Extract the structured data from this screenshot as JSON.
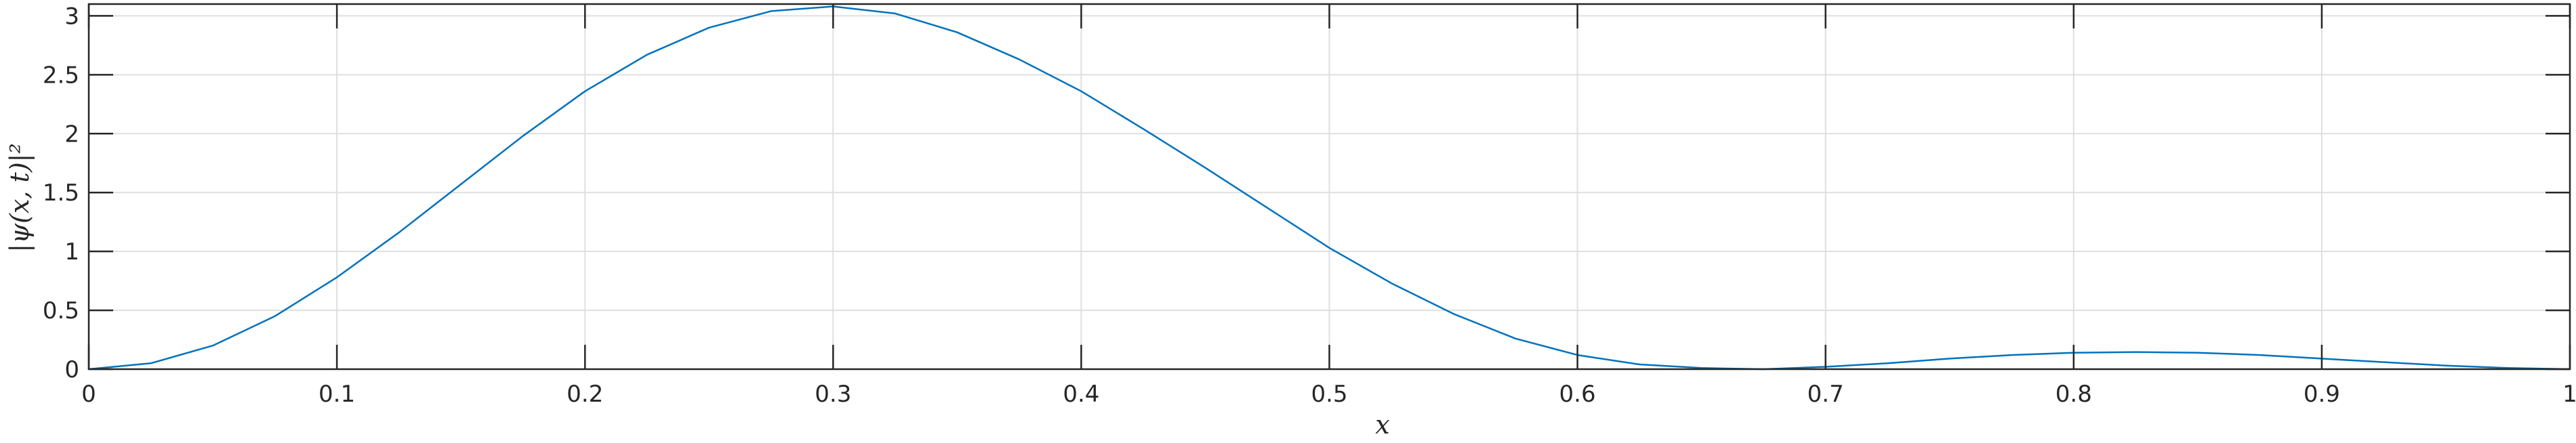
{
  "chart_data": {
    "type": "line",
    "xlabel": "x",
    "ylabel": "|ψ(x, t)|²",
    "xlim": [
      0,
      1
    ],
    "ylim": [
      0,
      3.1
    ],
    "x_ticks": [
      0,
      0.1,
      0.2,
      0.3,
      0.4,
      0.5,
      0.6,
      0.7,
      0.8,
      0.9,
      1
    ],
    "x_tick_labels": [
      "0",
      "0.1",
      "0.2",
      "0.3",
      "0.4",
      "0.5",
      "0.6",
      "0.7",
      "0.8",
      "0.9",
      "1"
    ],
    "y_ticks": [
      0,
      0.5,
      1,
      1.5,
      2,
      2.5,
      3
    ],
    "y_tick_labels": [
      "0",
      "0.5",
      "1",
      "1.5",
      "2",
      "2.5",
      "3"
    ],
    "grid": true,
    "series": [
      {
        "color": "#0072BD",
        "x": [
          0,
          0.025,
          0.05,
          0.075,
          0.1,
          0.125,
          0.15,
          0.175,
          0.2,
          0.225,
          0.25,
          0.275,
          0.3,
          0.325,
          0.35,
          0.375,
          0.4,
          0.425,
          0.45,
          0.475,
          0.5,
          0.525,
          0.55,
          0.575,
          0.6,
          0.625,
          0.65,
          0.675,
          0.7,
          0.725,
          0.75,
          0.775,
          0.8,
          0.825,
          0.85,
          0.875,
          0.9,
          0.925,
          0.95,
          0.975,
          1
        ],
        "y": [
          0,
          0.05,
          0.2,
          0.45,
          0.78,
          1.16,
          1.57,
          1.98,
          2.36,
          2.67,
          2.9,
          3.04,
          3.08,
          3.02,
          2.86,
          2.63,
          2.36,
          2.04,
          1.71,
          1.37,
          1.03,
          0.73,
          0.47,
          0.26,
          0.12,
          0.04,
          0.01,
          0.0,
          0.02,
          0.05,
          0.09,
          0.12,
          0.14,
          0.145,
          0.14,
          0.12,
          0.09,
          0.06,
          0.03,
          0.01,
          0
        ]
      }
    ]
  }
}
